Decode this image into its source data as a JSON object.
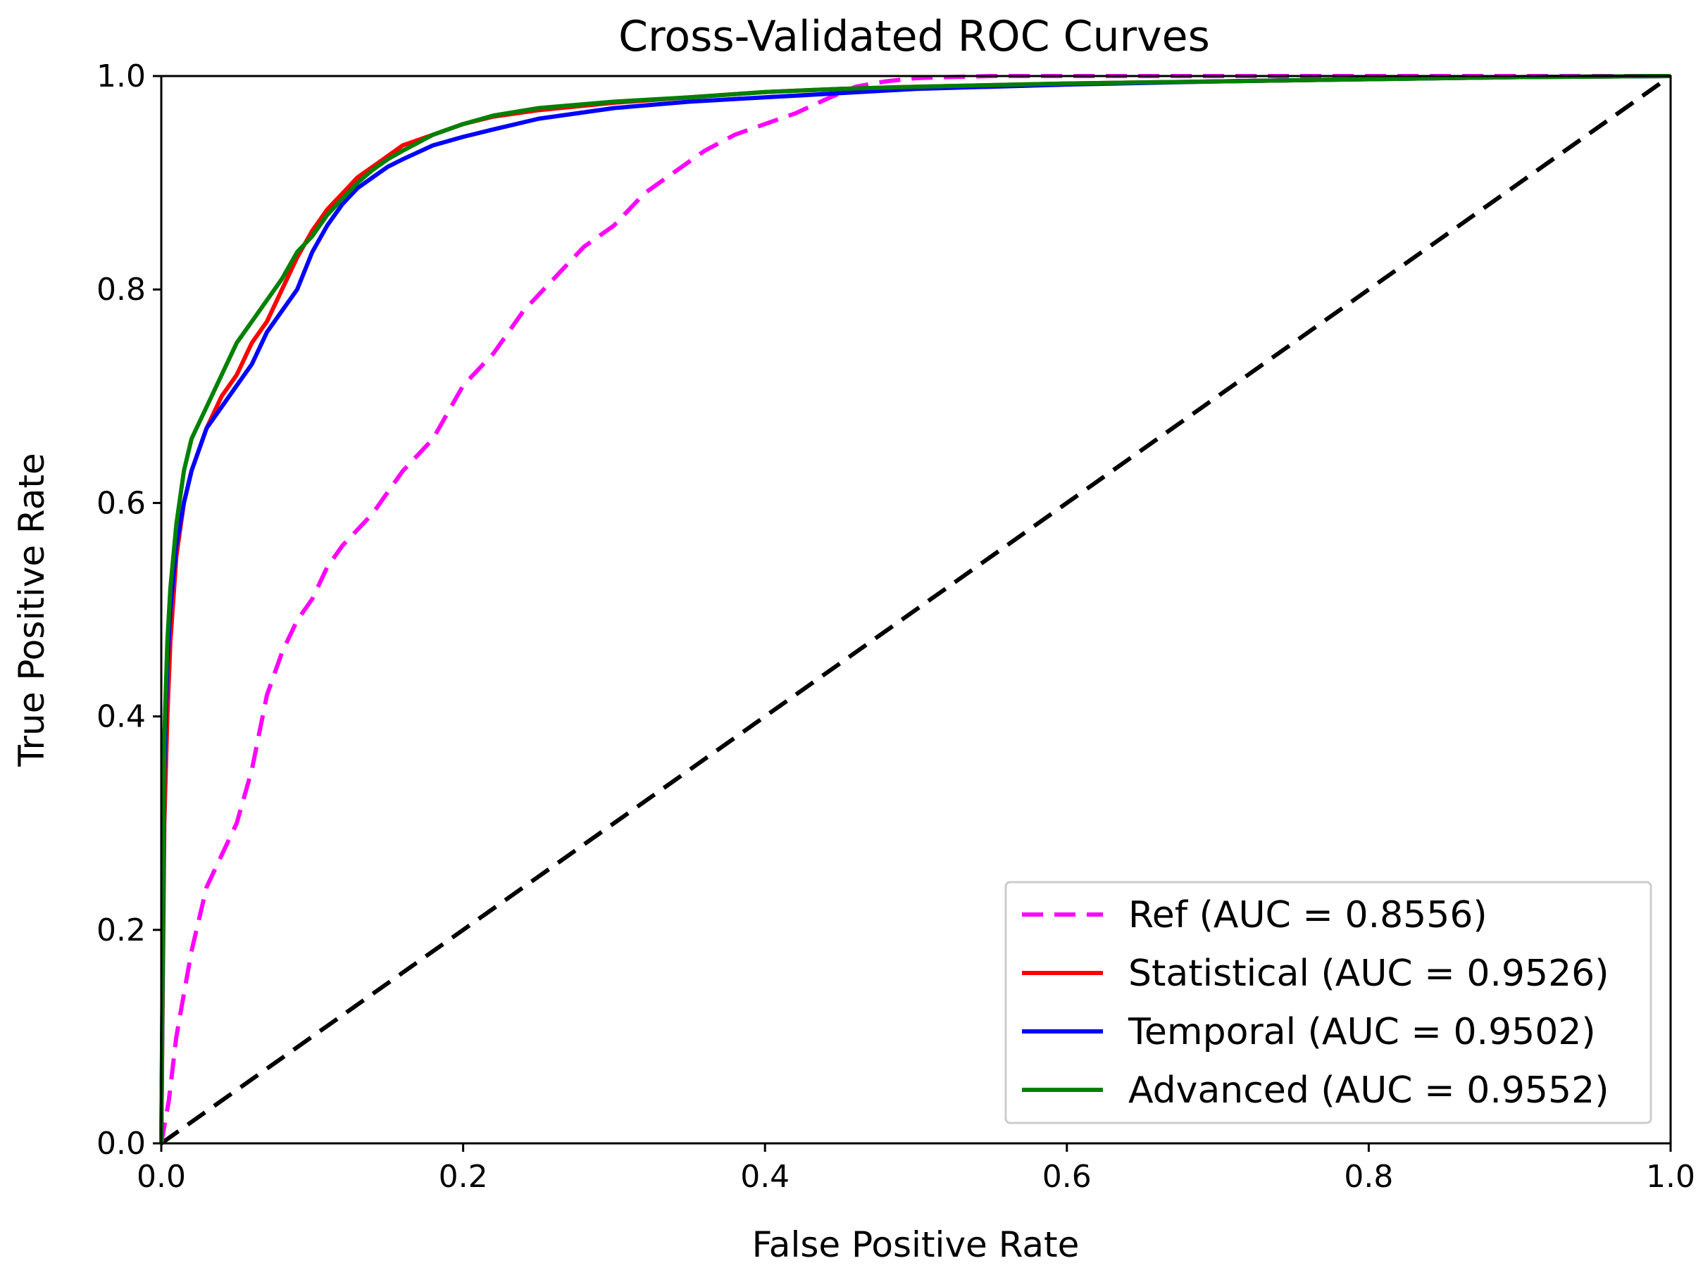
{
  "chart_data": {
    "type": "line",
    "title": "Cross-Validated ROC Curves",
    "xlabel": "False Positive Rate",
    "ylabel": "True Positive Rate",
    "xlim": [
      0.0,
      1.0
    ],
    "ylim": [
      0.0,
      1.0
    ],
    "xticks": [
      "0.0",
      "0.2",
      "0.4",
      "0.6",
      "0.8",
      "1.0"
    ],
    "yticks": [
      "0.0",
      "0.2",
      "0.4",
      "0.6",
      "0.8",
      "1.0"
    ],
    "grid": false,
    "legend_position": "lower-right",
    "series": [
      {
        "name": "Ref (AUC = 0.8556)",
        "color": "#ff00ff",
        "style": "dashed",
        "x": [
          0.0,
          0.005,
          0.01,
          0.015,
          0.02,
          0.03,
          0.04,
          0.05,
          0.06,
          0.07,
          0.08,
          0.09,
          0.1,
          0.11,
          0.12,
          0.14,
          0.16,
          0.18,
          0.2,
          0.22,
          0.24,
          0.26,
          0.28,
          0.3,
          0.32,
          0.34,
          0.36,
          0.38,
          0.4,
          0.42,
          0.44,
          0.46,
          0.48,
          0.5,
          0.52,
          0.55,
          0.6,
          0.7,
          0.8,
          0.9,
          1.0
        ],
        "y": [
          0.0,
          0.04,
          0.1,
          0.14,
          0.18,
          0.24,
          0.27,
          0.3,
          0.35,
          0.42,
          0.46,
          0.49,
          0.51,
          0.54,
          0.56,
          0.59,
          0.63,
          0.66,
          0.71,
          0.74,
          0.78,
          0.81,
          0.84,
          0.86,
          0.89,
          0.91,
          0.93,
          0.945,
          0.955,
          0.965,
          0.978,
          0.99,
          0.995,
          0.998,
          0.999,
          1.0,
          1.0,
          1.0,
          1.0,
          1.0,
          1.0
        ]
      },
      {
        "name": "Statistical (AUC = 0.9526)",
        "color": "#ff0000",
        "style": "solid",
        "x": [
          0.0,
          0.002,
          0.004,
          0.006,
          0.01,
          0.015,
          0.02,
          0.03,
          0.04,
          0.05,
          0.06,
          0.07,
          0.08,
          0.09,
          0.1,
          0.11,
          0.12,
          0.13,
          0.14,
          0.15,
          0.16,
          0.18,
          0.2,
          0.22,
          0.25,
          0.3,
          0.35,
          0.4,
          0.45,
          0.5,
          0.6,
          0.7,
          0.8,
          0.9,
          1.0
        ],
        "y": [
          0.0,
          0.3,
          0.4,
          0.47,
          0.55,
          0.6,
          0.63,
          0.67,
          0.7,
          0.72,
          0.75,
          0.77,
          0.8,
          0.83,
          0.855,
          0.875,
          0.89,
          0.905,
          0.915,
          0.925,
          0.935,
          0.945,
          0.955,
          0.962,
          0.968,
          0.975,
          0.98,
          0.985,
          0.988,
          0.99,
          0.993,
          0.995,
          0.997,
          0.999,
          1.0
        ]
      },
      {
        "name": "Temporal (AUC = 0.9502)",
        "color": "#0000ff",
        "style": "solid",
        "x": [
          0.0,
          0.002,
          0.004,
          0.006,
          0.01,
          0.015,
          0.02,
          0.03,
          0.04,
          0.05,
          0.06,
          0.07,
          0.08,
          0.09,
          0.1,
          0.11,
          0.12,
          0.13,
          0.14,
          0.15,
          0.16,
          0.18,
          0.2,
          0.22,
          0.25,
          0.3,
          0.35,
          0.4,
          0.45,
          0.5,
          0.6,
          0.7,
          0.8,
          0.9,
          1.0
        ],
        "y": [
          0.0,
          0.35,
          0.45,
          0.5,
          0.56,
          0.6,
          0.63,
          0.67,
          0.69,
          0.71,
          0.73,
          0.76,
          0.78,
          0.8,
          0.835,
          0.86,
          0.88,
          0.895,
          0.905,
          0.915,
          0.922,
          0.935,
          0.943,
          0.95,
          0.96,
          0.97,
          0.976,
          0.98,
          0.984,
          0.988,
          0.992,
          0.995,
          0.997,
          0.999,
          1.0
        ]
      },
      {
        "name": "Advanced (AUC = 0.9552)",
        "color": "#008000",
        "style": "solid",
        "x": [
          0.0,
          0.002,
          0.004,
          0.006,
          0.01,
          0.015,
          0.02,
          0.03,
          0.04,
          0.05,
          0.06,
          0.07,
          0.08,
          0.09,
          0.1,
          0.11,
          0.12,
          0.13,
          0.14,
          0.15,
          0.16,
          0.18,
          0.2,
          0.22,
          0.25,
          0.3,
          0.35,
          0.4,
          0.45,
          0.5,
          0.6,
          0.7,
          0.8,
          0.9,
          1.0
        ],
        "y": [
          0.0,
          0.38,
          0.47,
          0.52,
          0.58,
          0.63,
          0.66,
          0.69,
          0.72,
          0.75,
          0.77,
          0.79,
          0.81,
          0.835,
          0.85,
          0.87,
          0.885,
          0.9,
          0.912,
          0.922,
          0.93,
          0.945,
          0.955,
          0.963,
          0.97,
          0.976,
          0.98,
          0.985,
          0.988,
          0.99,
          0.993,
          0.995,
          0.997,
          0.999,
          1.0
        ]
      }
    ],
    "reference_line": {
      "color": "#000000",
      "style": "dashed",
      "x": [
        0.0,
        1.0
      ],
      "y": [
        0.0,
        1.0
      ]
    }
  }
}
